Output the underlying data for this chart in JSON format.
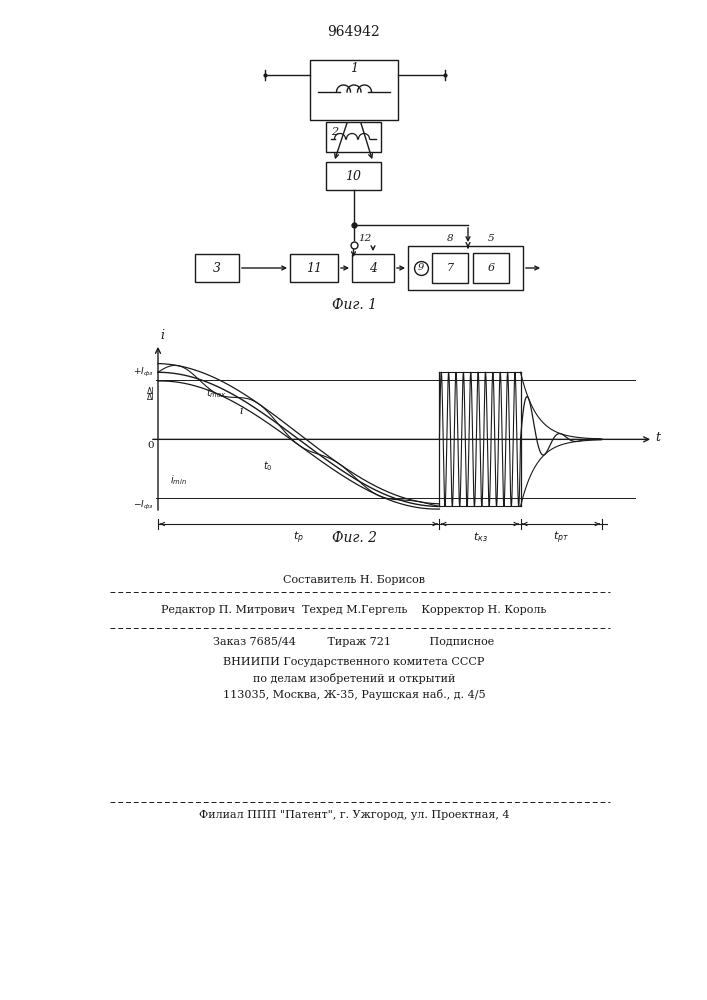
{
  "title": "964942",
  "fig1_caption": "Фиг. 1",
  "fig2_caption": "Фиг. 2",
  "line_color": "#1a1a1a",
  "footer_texts": [
    "Составитель Н. Борисов",
    "Редактор П. Митрович  Техред М.Гергель    Корректор Н. Король",
    "Заказ 7685/44         Тираж 721           Подписное",
    "ВНИИПИ Государственного комитета СССР",
    "по делам изобретений и открытий",
    "113035, Москва, Ж-35, Раушская наб., д. 4/5",
    "Филиал ППП \"Патент\", г. Ужгород, ул. Проектная, 4"
  ]
}
